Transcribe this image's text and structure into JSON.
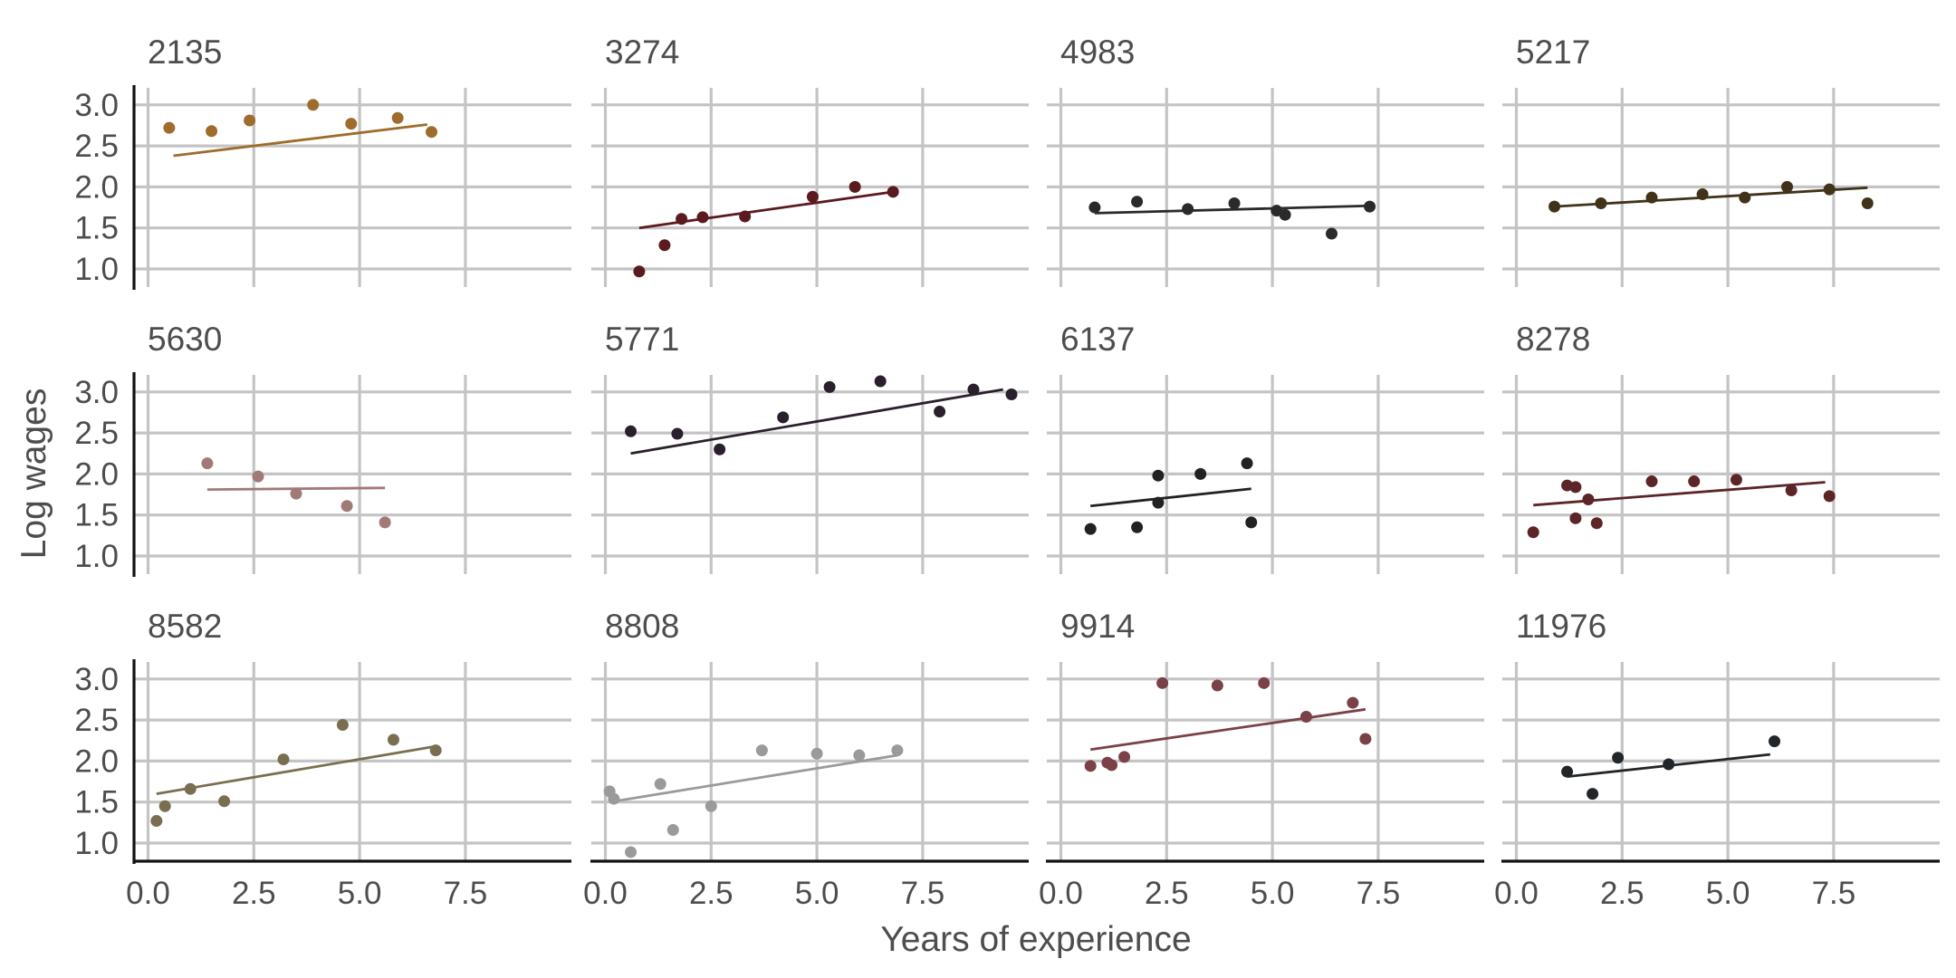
{
  "chart_data": {
    "type": "scatter",
    "subtype": "faceted scatter with linear fit lines",
    "xlabel": "Years of experience",
    "ylabel": "Log wages",
    "xlim": [
      0,
      9.8
    ],
    "ylim": [
      0.85,
      3.2
    ],
    "x_ticks": [
      0,
      2.5,
      5,
      7.5
    ],
    "x_tick_labels": [
      "0.0",
      "2.5",
      "5.0",
      "7.5"
    ],
    "y_ticks": [
      1,
      1.5,
      2,
      2.5,
      3
    ],
    "y_tick_labels": [
      "1.0",
      "1.5",
      "2.0",
      "2.5",
      "3.0"
    ],
    "grid": true,
    "legend": "none",
    "layout": {
      "rows": 3,
      "cols": 4
    },
    "panels": [
      {
        "label": "2135",
        "color": "#9E6C2B",
        "points": [
          [
            0.5,
            2.72
          ],
          [
            1.5,
            2.68
          ],
          [
            2.4,
            2.81
          ],
          [
            3.9,
            3.0
          ],
          [
            4.8,
            2.77
          ],
          [
            5.9,
            2.84
          ],
          [
            6.7,
            2.67
          ]
        ],
        "fit": [
          [
            0.6,
            2.38
          ],
          [
            6.6,
            2.76
          ]
        ]
      },
      {
        "label": "3274",
        "color": "#5B1A1E",
        "points": [
          [
            0.8,
            0.97
          ],
          [
            1.4,
            1.29
          ],
          [
            1.8,
            1.61
          ],
          [
            2.3,
            1.63
          ],
          [
            3.3,
            1.64
          ],
          [
            4.9,
            1.88
          ],
          [
            5.9,
            2.0
          ],
          [
            6.8,
            1.94
          ]
        ],
        "fit": [
          [
            0.8,
            1.5
          ],
          [
            6.8,
            1.94
          ]
        ]
      },
      {
        "label": "4983",
        "color": "#2A2A2A",
        "points": [
          [
            0.8,
            1.75
          ],
          [
            1.8,
            1.82
          ],
          [
            3.0,
            1.73
          ],
          [
            4.1,
            1.8
          ],
          [
            5.1,
            1.71
          ],
          [
            5.3,
            1.66
          ],
          [
            6.4,
            1.43
          ],
          [
            7.3,
            1.76
          ]
        ],
        "fit": [
          [
            0.8,
            1.68
          ],
          [
            7.3,
            1.77
          ]
        ]
      },
      {
        "label": "5217",
        "color": "#40331A",
        "points": [
          [
            0.9,
            1.76
          ],
          [
            2.0,
            1.8
          ],
          [
            3.2,
            1.87
          ],
          [
            4.4,
            1.91
          ],
          [
            5.4,
            1.87
          ],
          [
            6.4,
            2.0
          ],
          [
            7.4,
            1.97
          ],
          [
            8.3,
            1.8
          ]
        ],
        "fit": [
          [
            0.9,
            1.76
          ],
          [
            8.3,
            1.99
          ]
        ]
      },
      {
        "label": "5630",
        "color": "#A07A76",
        "points": [
          [
            1.4,
            2.13
          ],
          [
            2.6,
            1.97
          ],
          [
            3.5,
            1.76
          ],
          [
            4.7,
            1.61
          ],
          [
            5.6,
            1.41
          ]
        ],
        "fit": [
          [
            1.4,
            1.81
          ],
          [
            5.6,
            1.83
          ]
        ]
      },
      {
        "label": "5771",
        "color": "#2A1F2C",
        "points": [
          [
            0.6,
            2.52
          ],
          [
            1.7,
            2.49
          ],
          [
            2.7,
            2.3
          ],
          [
            4.2,
            2.69
          ],
          [
            5.3,
            3.06
          ],
          [
            6.5,
            3.13
          ],
          [
            7.9,
            2.76
          ],
          [
            8.7,
            3.03
          ],
          [
            9.6,
            2.97
          ]
        ],
        "fit": [
          [
            0.6,
            2.25
          ],
          [
            9.4,
            3.03
          ]
        ]
      },
      {
        "label": "6137",
        "color": "#222222",
        "points": [
          [
            0.7,
            1.33
          ],
          [
            1.8,
            1.35
          ],
          [
            2.3,
            1.98
          ],
          [
            2.3,
            1.65
          ],
          [
            3.3,
            2.0
          ],
          [
            4.4,
            2.13
          ],
          [
            4.5,
            1.41
          ]
        ],
        "fit": [
          [
            0.7,
            1.61
          ],
          [
            4.5,
            1.82
          ]
        ]
      },
      {
        "label": "8278",
        "color": "#5C2527",
        "points": [
          [
            0.4,
            1.29
          ],
          [
            1.2,
            1.86
          ],
          [
            1.4,
            1.84
          ],
          [
            1.4,
            1.46
          ],
          [
            1.7,
            1.69
          ],
          [
            1.9,
            1.4
          ],
          [
            3.2,
            1.91
          ],
          [
            4.2,
            1.91
          ],
          [
            5.2,
            1.93
          ],
          [
            6.5,
            1.8
          ],
          [
            7.4,
            1.73
          ]
        ],
        "fit": [
          [
            0.4,
            1.62
          ],
          [
            7.3,
            1.9
          ]
        ]
      },
      {
        "label": "8582",
        "color": "#7A6E50",
        "points": [
          [
            0.2,
            1.27
          ],
          [
            0.4,
            1.45
          ],
          [
            1.0,
            1.66
          ],
          [
            1.8,
            1.51
          ],
          [
            3.2,
            2.02
          ],
          [
            4.6,
            2.44
          ],
          [
            5.8,
            2.26
          ],
          [
            6.8,
            2.13
          ]
        ],
        "fit": [
          [
            0.2,
            1.6
          ],
          [
            6.8,
            2.18
          ]
        ]
      },
      {
        "label": "8808",
        "color": "#9A9A9A",
        "points": [
          [
            0.1,
            1.63
          ],
          [
            0.2,
            1.54
          ],
          [
            0.6,
            0.89
          ],
          [
            1.3,
            1.72
          ],
          [
            1.6,
            1.16
          ],
          [
            2.5,
            1.45
          ],
          [
            3.7,
            2.13
          ],
          [
            5.0,
            2.09
          ],
          [
            6.0,
            2.07
          ],
          [
            6.9,
            2.13
          ]
        ],
        "fit": [
          [
            0.1,
            1.5
          ],
          [
            6.9,
            2.07
          ]
        ]
      },
      {
        "label": "9914",
        "color": "#7A4148",
        "points": [
          [
            0.7,
            1.94
          ],
          [
            1.1,
            1.98
          ],
          [
            1.2,
            1.95
          ],
          [
            1.5,
            2.05
          ],
          [
            2.4,
            2.95
          ],
          [
            3.7,
            2.92
          ],
          [
            4.8,
            2.95
          ],
          [
            5.8,
            2.54
          ],
          [
            6.9,
            2.71
          ],
          [
            7.2,
            2.27
          ]
        ],
        "fit": [
          [
            0.7,
            2.14
          ],
          [
            7.2,
            2.63
          ]
        ]
      },
      {
        "label": "11976",
        "color": "#232629",
        "points": [
          [
            1.2,
            1.87
          ],
          [
            1.8,
            1.6
          ],
          [
            2.4,
            2.04
          ],
          [
            3.6,
            1.96
          ],
          [
            6.1,
            2.24
          ]
        ],
        "fit": [
          [
            1.2,
            1.81
          ],
          [
            6.0,
            2.08
          ]
        ]
      }
    ]
  }
}
